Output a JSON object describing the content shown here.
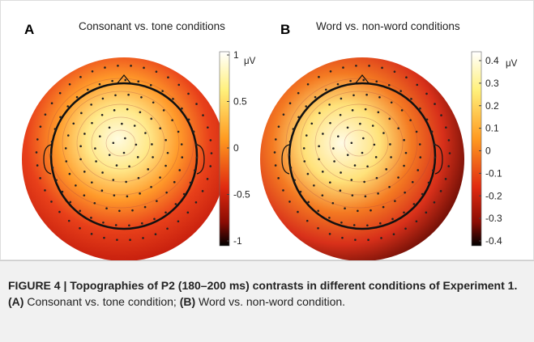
{
  "panels": [
    {
      "label": "A",
      "title": "Consonant vs. tone conditions",
      "colorbar": {
        "unit": "μV",
        "ticks": [
          1,
          0.5,
          0,
          -0.5,
          -1
        ]
      }
    },
    {
      "label": "B",
      "title": "Word vs. non-word conditions",
      "colorbar": {
        "unit": "μV",
        "ticks": [
          0.4,
          0.3,
          0.2,
          0.1,
          0,
          -0.1,
          -0.2,
          -0.3,
          -0.4
        ]
      }
    }
  ],
  "caption": {
    "heading": "FIGURE 4 | Topographies of P2 (180–200 ms) contrasts in different conditions of Experiment 1.",
    "parts": [
      {
        "ref": "(A)",
        "text": "Consonant vs. tone condition;"
      },
      {
        "ref": "(B)",
        "text": "Word vs. non-word condition."
      }
    ]
  }
}
